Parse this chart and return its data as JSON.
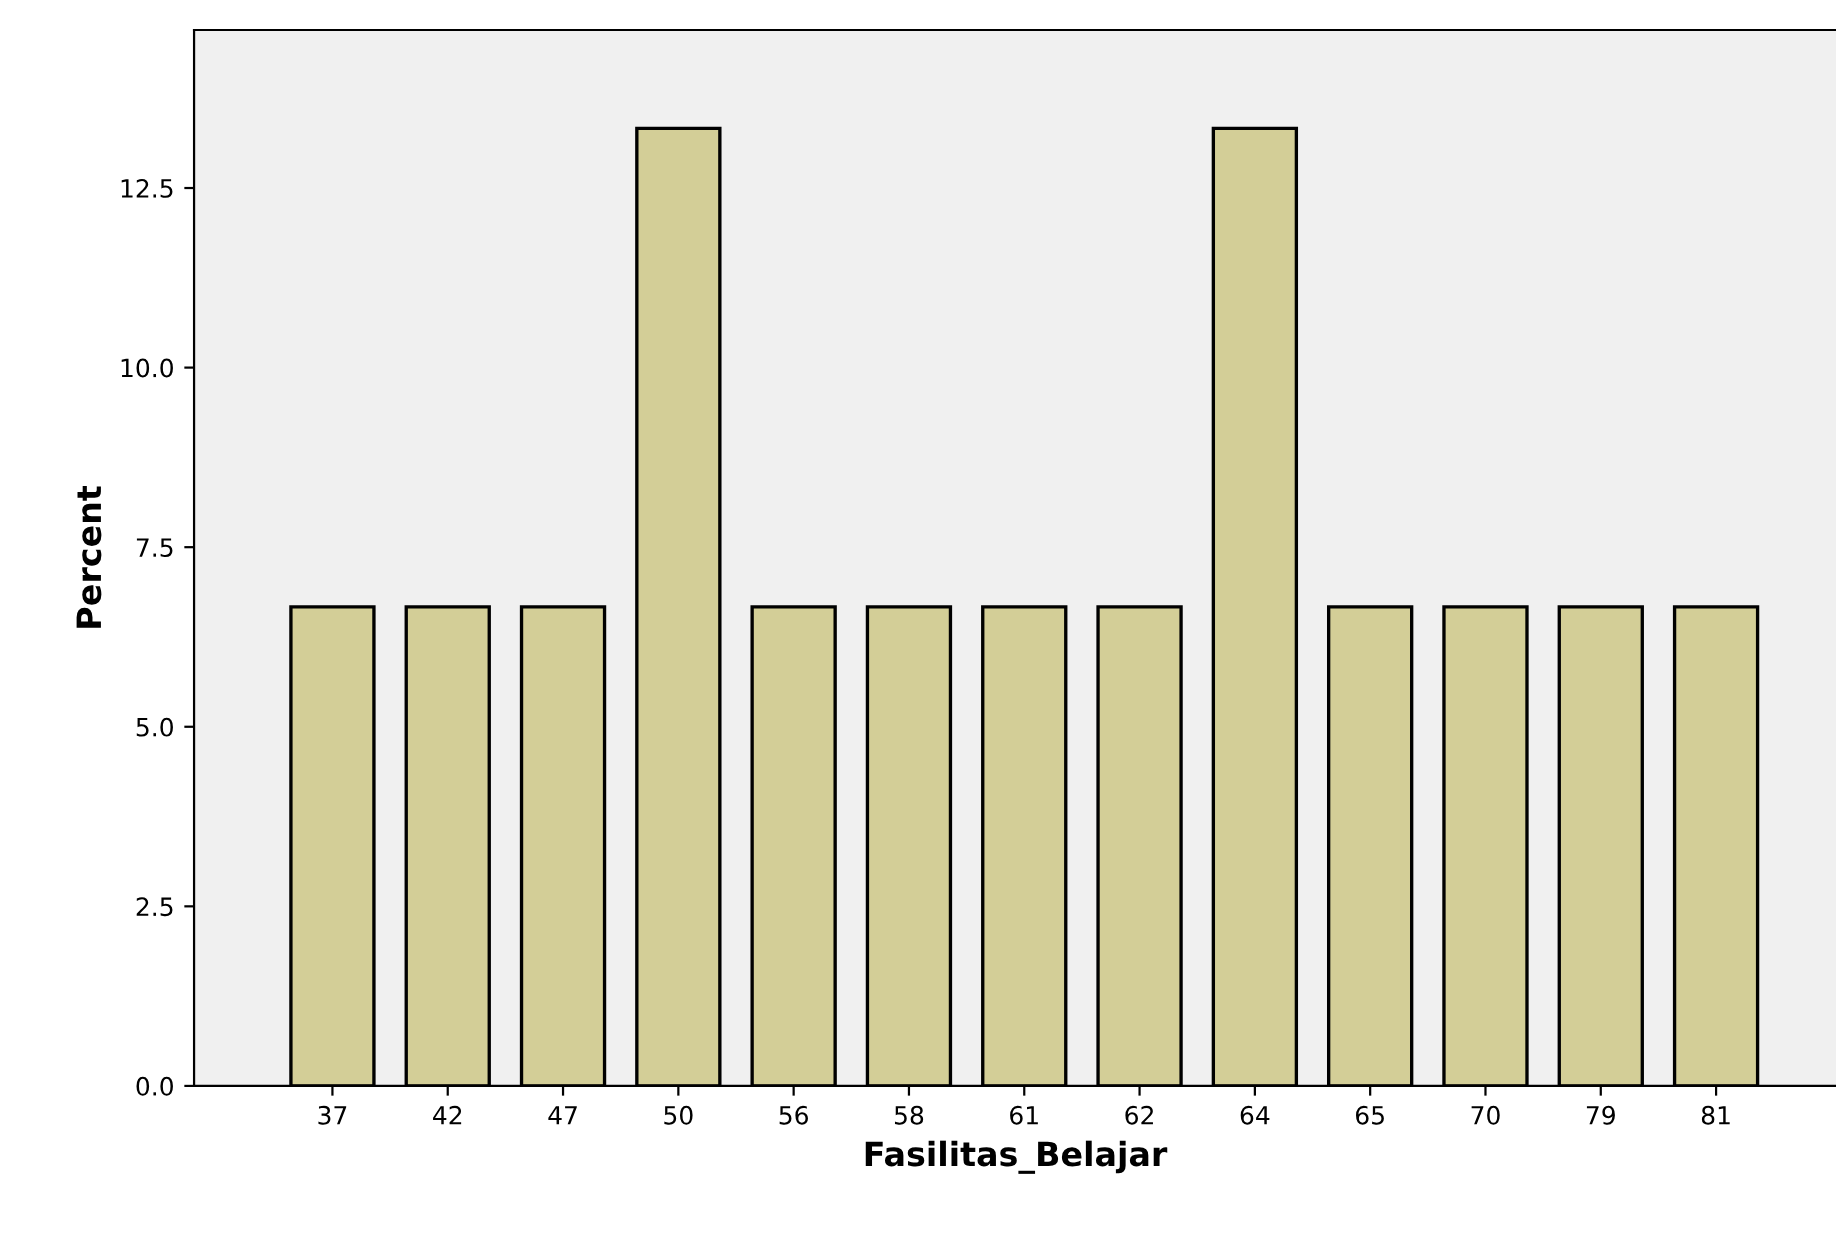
{
  "chart_data": {
    "type": "bar",
    "xlabel": "Fasilitas_Belajar",
    "ylabel": "Percent",
    "categories": [
      "37",
      "42",
      "47",
      "50",
      "56",
      "58",
      "61",
      "62",
      "64",
      "65",
      "70",
      "79",
      "81"
    ],
    "values": [
      6.67,
      6.67,
      6.67,
      13.33,
      6.67,
      6.67,
      6.67,
      6.67,
      13.33,
      6.67,
      6.67,
      6.67,
      6.67
    ],
    "color": "#d3ce97",
    "ylim": [
      0,
      14.7
    ],
    "yticks": [
      {
        "value": 0,
        "label": "0.0"
      },
      2.5,
      {
        "value": 5,
        "label": "5.0"
      },
      7.5,
      {
        "value": 10,
        "label": "10.0"
      },
      12.5
    ],
    "grid": false,
    "legend": false
  }
}
